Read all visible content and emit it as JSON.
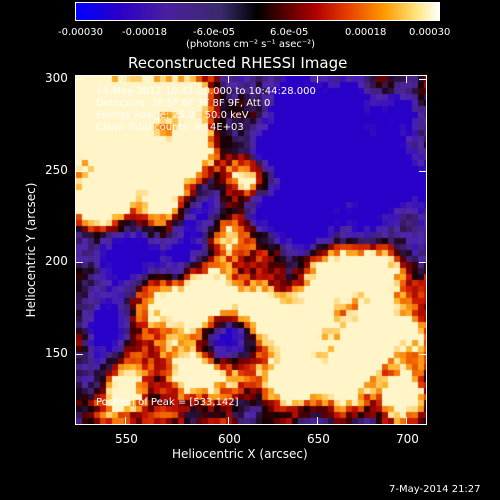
{
  "colorbar": {
    "tick_labels": [
      "-0.00030",
      "-0.00018",
      "-6.0e-05",
      "6.0e-05",
      "0.00018",
      "0.00030"
    ],
    "units_label": "(photons cm⁻² s⁻¹ asec⁻²)",
    "colormap": [
      "#0000ff",
      "#4a1fa0",
      "#000000",
      "#b00000",
      "#ff9a00",
      "#ffffff"
    ]
  },
  "plot": {
    "title": "Reconstructed RHESSI Image",
    "info_lines": [
      "14-May-2012 10:41:20.000 to 10:44:28.000",
      "Detectors: 3F 5F 6F 7F 8F 9F, Att 0",
      "Energy Range: 25.0 - 50.0 keV",
      "Clean     Total counts: 4.14E+03"
    ],
    "peak_label": "Position of Peak = [533,142]",
    "xlabel": "Heliocentric X (arcsec)",
    "ylabel": "Heliocentric Y (arcsec)",
    "x_ticks": [
      "550",
      "600",
      "650",
      "700"
    ],
    "y_ticks": [
      "150",
      "200",
      "250",
      "300"
    ],
    "xlim": [
      517,
      710
    ],
    "ylim": [
      110,
      302
    ],
    "background_color": "#000000"
  },
  "footer": {
    "timestamp": "7-May-2014 21:27"
  },
  "chart_data": {
    "type": "heatmap",
    "title": "Reconstructed RHESSI Image",
    "xlabel": "Heliocentric X (arcsec)",
    "ylabel": "Heliocentric Y (arcsec)",
    "x_ticks": [
      550,
      600,
      650,
      700
    ],
    "y_ticks": [
      150,
      200,
      250,
      300
    ],
    "xlim": [
      517,
      710
    ],
    "ylim": [
      110,
      302
    ],
    "value_range": [
      -0.0003,
      0.0003
    ],
    "colorbar_ticks": [
      -0.0003,
      -0.00018,
      -6e-05,
      6e-05,
      0.00018,
      0.0003
    ],
    "peak_position": [
      533,
      142
    ],
    "total_counts": 4140,
    "energy_range_kev": [
      25.0,
      50.0
    ],
    "grid": false
  }
}
